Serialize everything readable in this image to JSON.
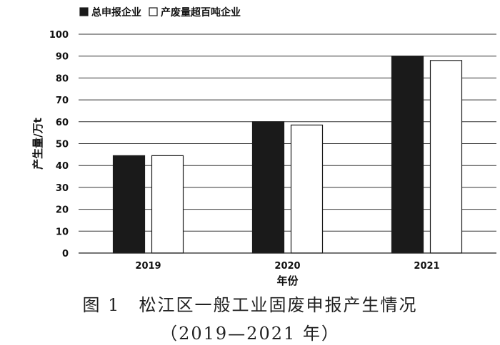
{
  "chart_data": {
    "type": "bar",
    "categories": [
      "2019",
      "2020",
      "2021"
    ],
    "series": [
      {
        "name": "总申报企业",
        "values": [
          44.5,
          60,
          90
        ],
        "color": "#1a1a1a"
      },
      {
        "name": "产废量超百吨企业",
        "values": [
          44.5,
          58.5,
          88
        ],
        "color": "#ffffff"
      }
    ],
    "xlabel": "年份",
    "ylabel": "产生量/万t",
    "ylim": [
      0,
      100
    ],
    "yticks": [
      0,
      10,
      20,
      30,
      40,
      50,
      60,
      70,
      80,
      90,
      100
    ],
    "grid": true,
    "legend_position": "top-left"
  },
  "caption": {
    "line1": "图 1　松江区一般工业固废申报产生情况",
    "line2": "（2019—2021 年）"
  }
}
